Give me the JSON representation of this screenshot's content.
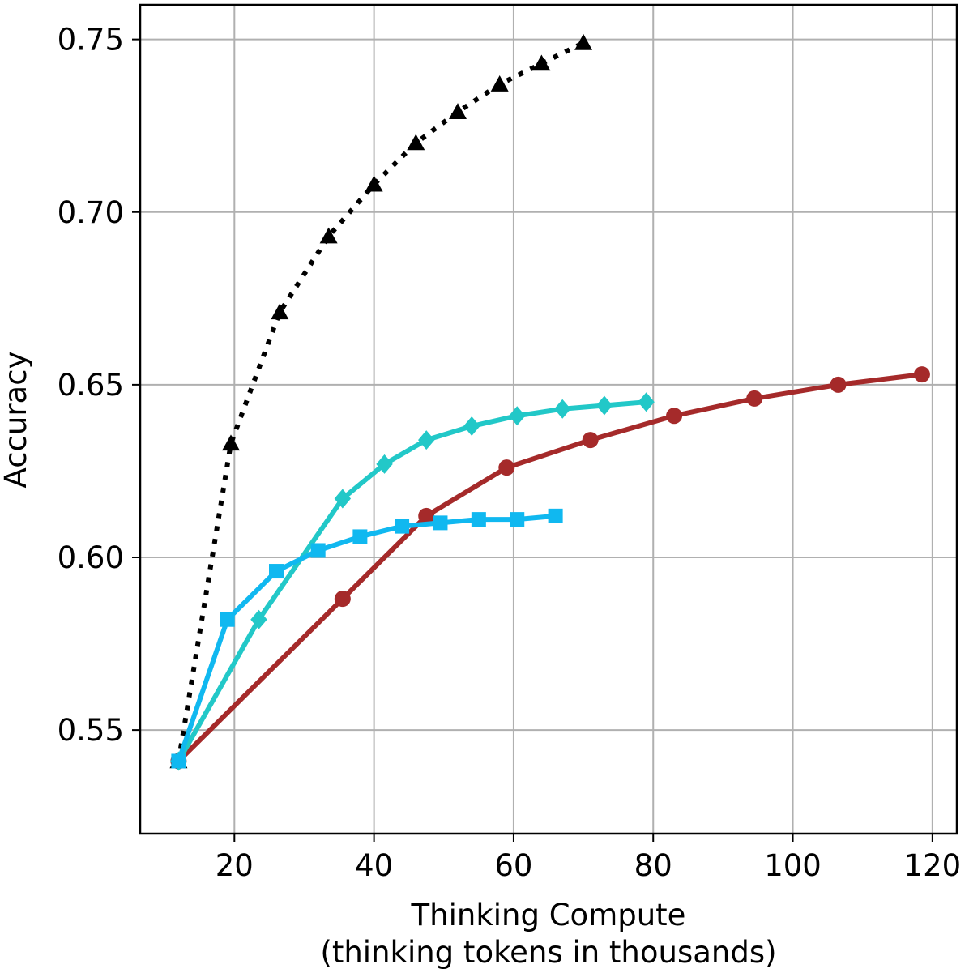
{
  "chart_data": {
    "type": "line",
    "title": "",
    "xlabel": "Thinking Compute",
    "xlabel_line2": "(thinking tokens in thousands)",
    "ylabel": "Accuracy",
    "xlim": [
      6.5,
      123.5
    ],
    "ylim": [
      0.52,
      0.76
    ],
    "xticks": [
      20,
      40,
      60,
      80,
      100,
      120
    ],
    "yticks": [
      0.55,
      0.6,
      0.65,
      0.7,
      0.75
    ],
    "xtick_labels": [
      "20",
      "40",
      "60",
      "80",
      "100",
      "120"
    ],
    "ytick_labels": [
      "0.55",
      "0.60",
      "0.65",
      "0.70",
      "0.75"
    ],
    "grid": true,
    "series": [
      {
        "color": "#000000",
        "marker": "triangle",
        "linestyle": "dotted",
        "x": [
          12,
          19.5,
          26.5,
          33.5,
          40,
          46,
          52,
          58,
          64,
          70
        ],
        "y": [
          0.541,
          0.633,
          0.671,
          0.693,
          0.708,
          0.72,
          0.729,
          0.737,
          0.743,
          0.749
        ]
      },
      {
        "color": "#a52a2a",
        "marker": "circle",
        "linestyle": "solid",
        "x": [
          12,
          35.5,
          47.5,
          59,
          71,
          83,
          94.5,
          106.5,
          118.5
        ],
        "y": [
          0.541,
          0.588,
          0.612,
          0.626,
          0.634,
          0.641,
          0.646,
          0.65,
          0.653
        ]
      },
      {
        "color": "#22c8c8",
        "marker": "diamond",
        "linestyle": "solid",
        "x": [
          12,
          23.5,
          35.5,
          41.5,
          47.5,
          54,
          60.5,
          67,
          73,
          79
        ],
        "y": [
          0.541,
          0.582,
          0.617,
          0.627,
          0.634,
          0.638,
          0.641,
          0.643,
          0.644,
          0.645
        ]
      },
      {
        "color": "#10b8f0",
        "marker": "square",
        "linestyle": "solid",
        "x": [
          12,
          19,
          26,
          32,
          38,
          44,
          49.5,
          55,
          60.5,
          66
        ],
        "y": [
          0.541,
          0.582,
          0.596,
          0.602,
          0.606,
          0.609,
          0.61,
          0.611,
          0.611,
          0.612
        ]
      }
    ]
  }
}
